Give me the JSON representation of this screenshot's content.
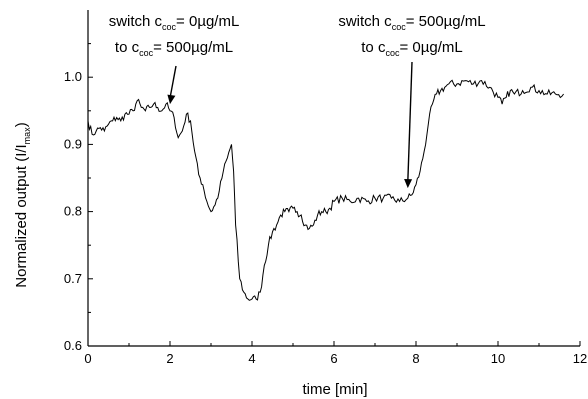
{
  "chart_data": {
    "type": "line",
    "xlabel": "time [min]",
    "ylabel_main": "Normalized output (I/I",
    "ylabel_sub": "max",
    "ylabel_end": ")",
    "xlim": [
      0,
      12
    ],
    "ylim": [
      0.6,
      1.1
    ],
    "xticks": [
      0,
      2,
      4,
      6,
      8,
      10,
      12
    ],
    "yticks": [
      0.6,
      0.7,
      0.8,
      0.9,
      1.0
    ],
    "xtick_labels": [
      "0",
      "2",
      "4",
      "6",
      "8",
      "10",
      "12"
    ],
    "ytick_labels": [
      "0.6",
      "0.7",
      "0.8",
      "0.9",
      "1.0"
    ],
    "grid": false,
    "series": [
      {
        "x": [
          0.0,
          0.1,
          0.2,
          0.3,
          0.4,
          0.5,
          0.6,
          0.7,
          0.8,
          0.9,
          1.0,
          1.1,
          1.2,
          1.3,
          1.4,
          1.5,
          1.6,
          1.7,
          1.8,
          1.9,
          2.0,
          2.1,
          2.2,
          2.3,
          2.4,
          2.5,
          2.6,
          2.7,
          2.8,
          2.9,
          3.0,
          3.1,
          3.2,
          3.3,
          3.4,
          3.5,
          3.55,
          3.6,
          3.7,
          3.8,
          3.9,
          4.0,
          4.1,
          4.2,
          4.3,
          4.4,
          4.5,
          4.6,
          4.7,
          4.8,
          4.9,
          5.0,
          5.1,
          5.2,
          5.3,
          5.4,
          5.5,
          5.6,
          5.7,
          5.8,
          5.9,
          6.0,
          6.2,
          6.4,
          6.6,
          6.8,
          7.0,
          7.2,
          7.4,
          7.6,
          7.8,
          7.9,
          8.0,
          8.1,
          8.2,
          8.3,
          8.4,
          8.5,
          8.6,
          8.7,
          8.8,
          9.0,
          9.2,
          9.4,
          9.6,
          9.8,
          10.0,
          10.1,
          10.2,
          10.3,
          10.4,
          10.6,
          10.8,
          11.0,
          11.2,
          11.4,
          11.6
        ],
        "y": [
          0.935,
          0.915,
          0.92,
          0.925,
          0.92,
          0.93,
          0.935,
          0.94,
          0.935,
          0.945,
          0.945,
          0.95,
          0.965,
          0.955,
          0.95,
          0.955,
          0.96,
          0.955,
          0.95,
          0.96,
          0.95,
          0.94,
          0.91,
          0.92,
          0.945,
          0.935,
          0.89,
          0.855,
          0.84,
          0.815,
          0.8,
          0.81,
          0.83,
          0.86,
          0.88,
          0.9,
          0.86,
          0.78,
          0.7,
          0.68,
          0.67,
          0.67,
          0.67,
          0.68,
          0.72,
          0.75,
          0.77,
          0.78,
          0.795,
          0.8,
          0.8,
          0.805,
          0.8,
          0.795,
          0.78,
          0.775,
          0.78,
          0.795,
          0.8,
          0.8,
          0.805,
          0.815,
          0.82,
          0.815,
          0.82,
          0.815,
          0.82,
          0.82,
          0.82,
          0.815,
          0.82,
          0.825,
          0.84,
          0.86,
          0.89,
          0.93,
          0.96,
          0.975,
          0.98,
          0.985,
          0.99,
          0.99,
          0.995,
          0.99,
          0.995,
          0.985,
          0.97,
          0.96,
          0.97,
          0.98,
          0.975,
          0.98,
          0.985,
          0.98,
          0.975,
          0.975,
          0.975
        ]
      }
    ],
    "annotations": [
      {
        "line1_pre": "switch c",
        "line1_sub": "coc",
        "line1_post": "= 0µg/mL",
        "line2_pre": "to c",
        "line2_sub": "coc",
        "line2_post": "= 500µg/mL",
        "arrow_target_x": 2.0,
        "arrow_target_y": 0.96
      },
      {
        "line1_pre": "switch c",
        "line1_sub": "coc",
        "line1_post": "= 500µg/mL",
        "line2_pre": "to c",
        "line2_sub": "coc",
        "line2_post": "= 0µg/mL",
        "arrow_target_x": 7.8,
        "arrow_target_y": 0.835
      }
    ]
  }
}
